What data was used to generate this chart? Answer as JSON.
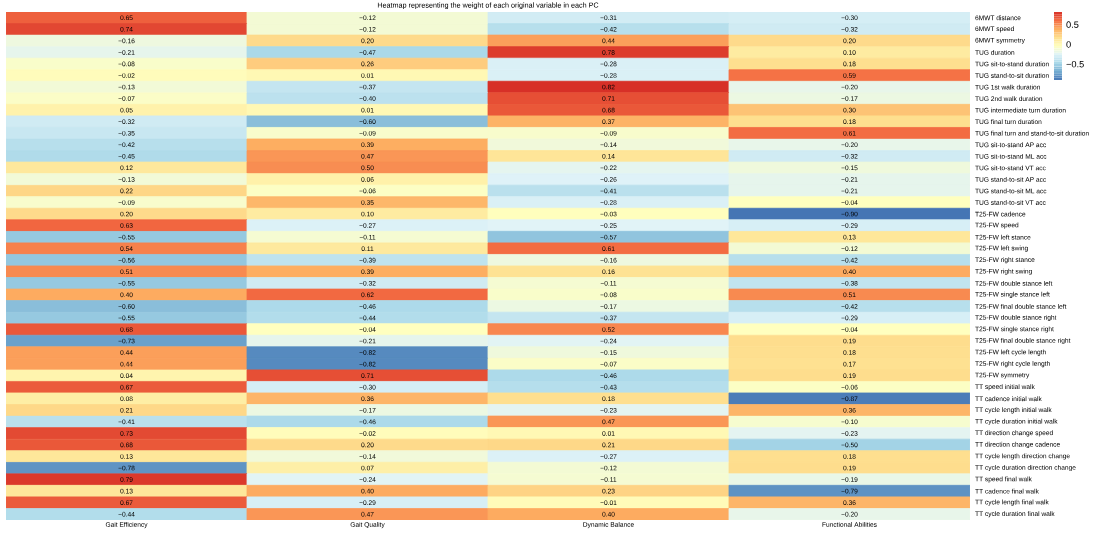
{
  "chart_data": {
    "type": "heatmap",
    "title": "Heatmap representing the weight of each original variable in each PC",
    "categories": [
      "Gait Efficiency",
      "Gait Quality",
      "Dynamic Balance",
      "Functional Abilities"
    ],
    "y_categories": [
      "6MWT distance",
      "6MWT speed",
      "6MWT symmetry",
      "TUG duration",
      "TUG sit-to-stand duration",
      "TUG stand-to-sit duration",
      "TUG 1st walk duration",
      "TUG 2nd walk duration",
      "TUG intermediate turn duration",
      "TUG final turn duration",
      "TUG final turn and stand-to-sit duration",
      "TUG sit-to-stand AP acc",
      "TUG sit-to-stand ML acc",
      "TUG sit-to-stand VT acc",
      "TUG stand-to-sit AP acc",
      "TUG stand-to-sit ML acc",
      "TUG stand-to-sit VT acc",
      "T25-FW cadence",
      "T25-FW speed",
      "T25-FW left stance",
      "T25-FW left swing",
      "T25-FW right stance",
      "T25-FW right swing",
      "T25-FW double stance left",
      "T25-FW single stance left",
      "T25-FW final double stance left",
      "T25-FW double stance right",
      "T25-FW single stance right",
      "T25-FW final double stance right",
      "T25-FW left cycle length",
      "T25-FW right cycle length",
      "T25-FW symmetry",
      "TT speed initial walk",
      "TT cadence initial walk",
      "TT cycle length initial walk",
      "TT cycle duration initial walk",
      "TT direction change speed",
      "TT direction change cadence",
      "TT cycle length direction change",
      "TT cycle duration direction change",
      "TT speed final walk",
      "TT cadence final walk",
      "TT cycle length final walk",
      "TT cycle duration final walk"
    ],
    "cells": [
      [
        0.65,
        -0.12,
        -0.31,
        -0.3
      ],
      [
        0.74,
        -0.12,
        -0.42,
        -0.32
      ],
      [
        -0.16,
        0.2,
        0.44,
        0.2
      ],
      [
        -0.21,
        -0.47,
        0.78,
        0.1
      ],
      [
        -0.08,
        0.26,
        -0.28,
        0.18
      ],
      [
        -0.02,
        0.01,
        -0.28,
        0.59
      ],
      [
        -0.13,
        -0.37,
        0.82,
        -0.2
      ],
      [
        -0.07,
        -0.4,
        0.71,
        -0.17
      ],
      [
        0.05,
        0.01,
        0.68,
        0.3
      ],
      [
        -0.32,
        -0.6,
        0.37,
        0.18
      ],
      [
        -0.35,
        -0.09,
        -0.09,
        0.61
      ],
      [
        -0.42,
        0.39,
        -0.14,
        -0.2
      ],
      [
        -0.45,
        0.47,
        0.14,
        -0.32
      ],
      [
        0.12,
        0.5,
        -0.22,
        -0.15
      ],
      [
        -0.13,
        0.06,
        -0.26,
        -0.21
      ],
      [
        0.22,
        -0.06,
        -0.41,
        -0.21
      ],
      [
        -0.09,
        0.35,
        -0.28,
        -0.04
      ],
      [
        0.2,
        0.1,
        -0.03,
        -0.9
      ],
      [
        0.63,
        -0.27,
        -0.25,
        -0.29
      ],
      [
        -0.55,
        -0.11,
        -0.57,
        0.13
      ],
      [
        0.54,
        0.11,
        0.61,
        -0.12
      ],
      [
        -0.56,
        -0.39,
        -0.16,
        -0.42
      ],
      [
        0.51,
        0.39,
        0.16,
        0.4
      ],
      [
        -0.55,
        -0.32,
        -0.11,
        -0.38
      ],
      [
        0.4,
        0.62,
        -0.08,
        0.51
      ],
      [
        -0.6,
        -0.46,
        -0.17,
        -0.42
      ],
      [
        -0.55,
        -0.44,
        -0.37,
        -0.29
      ],
      [
        0.68,
        -0.04,
        0.52,
        -0.04
      ],
      [
        -0.73,
        -0.21,
        -0.24,
        0.19
      ],
      [
        0.44,
        -0.82,
        -0.15,
        0.18
      ],
      [
        0.44,
        -0.82,
        -0.07,
        0.17
      ],
      [
        0.04,
        0.71,
        -0.46,
        0.19
      ],
      [
        0.67,
        -0.3,
        -0.43,
        -0.06
      ],
      [
        0.08,
        0.36,
        0.18,
        -0.87
      ],
      [
        0.21,
        -0.17,
        -0.23,
        0.36
      ],
      [
        -0.41,
        -0.46,
        0.47,
        -0.1
      ],
      [
        0.73,
        -0.02,
        0.01,
        -0.23
      ],
      [
        0.68,
        0.2,
        0.21,
        -0.5
      ],
      [
        0.13,
        -0.14,
        -0.27,
        0.18
      ],
      [
        -0.78,
        0.07,
        -0.12,
        0.19
      ],
      [
        0.79,
        -0.24,
        -0.11,
        -0.19
      ],
      [
        0.13,
        0.4,
        0.23,
        -0.79
      ],
      [
        0.67,
        -0.29,
        -0.01,
        0.36
      ],
      [
        -0.44,
        0.47,
        0.4,
        -0.2
      ]
    ],
    "cell_labels": [
      [
        "0.65",
        "−0.12",
        "−0.31",
        "−0.30"
      ],
      [
        "0.74",
        "−0.12",
        "−0.42",
        "−0.32"
      ],
      [
        "−0.16",
        "0.20",
        "0.44",
        "0.20"
      ],
      [
        "−0.21",
        "−0.47",
        "0.78",
        "0.10"
      ],
      [
        "−0.08",
        "0.26",
        "−0.28",
        "0.18"
      ],
      [
        "−0.02",
        "0.01",
        "−0.28",
        "0.59"
      ],
      [
        "−0.13",
        "−0.37",
        "0.82",
        "−0.20"
      ],
      [
        "−0.07",
        "−0.40",
        "0.71",
        "−0.17"
      ],
      [
        "0.05",
        "0.01",
        "0.68",
        "0.30"
      ],
      [
        "−0.32",
        "−0.60",
        "0.37",
        "0.18"
      ],
      [
        "−0.35",
        "−0.09",
        "−0.09",
        "0.61"
      ],
      [
        "−0.42",
        "0.39",
        "−0.14",
        "−0.20"
      ],
      [
        "−0.45",
        "0.47",
        "0.14",
        "−0.32"
      ],
      [
        "0.12",
        "0.50",
        "−0.22",
        "−0.15"
      ],
      [
        "−0.13",
        "0.06",
        "−0.26",
        "−0.21"
      ],
      [
        "0.22",
        "−0.06",
        "−0.41",
        "−0.21"
      ],
      [
        "−0.09",
        "0.35",
        "−0.28",
        "−0.04"
      ],
      [
        "0.20",
        "0.10",
        "−0.03",
        "−0.90"
      ],
      [
        "0.63",
        "−0.27",
        "−0.25",
        "−0.29"
      ],
      [
        "−0.55",
        "−0.11",
        "−0.57",
        "0.13"
      ],
      [
        "0.54",
        "0.11",
        "0.61",
        "−0.12"
      ],
      [
        "−0.56",
        "−0.39",
        "−0.16",
        "−0.42"
      ],
      [
        "0.51",
        "0.39",
        "0.16",
        "0.40"
      ],
      [
        "−0.55",
        "−0.32",
        "−0.11",
        "−0.38"
      ],
      [
        "0.40",
        "0.62",
        "−0.08",
        "0.51"
      ],
      [
        "−0.60",
        "−0.46",
        "−0.17",
        "−0.42"
      ],
      [
        "−0.55",
        "−0.44",
        "−0.37",
        "−0.29"
      ],
      [
        "0.68",
        "−0.04",
        "0.52",
        "−0.04"
      ],
      [
        "−0.73",
        "−0.21",
        "−0.24",
        "0.19"
      ],
      [
        "0.44",
        "−0.82",
        "−0.15",
        "0.18"
      ],
      [
        "0.44",
        "−0.82",
        "−0.07",
        "0.17"
      ],
      [
        "0.04",
        "0.71",
        "−0.46",
        "0.19"
      ],
      [
        "0.67",
        "−0.30",
        "−0.43",
        "−0.06"
      ],
      [
        "0.08",
        "0.36",
        "0.18",
        "−0.87"
      ],
      [
        "0.21",
        "−0.17",
        "−0.23",
        "0.36"
      ],
      [
        "−0.41",
        "−0.46",
        "0.47",
        "−0.10"
      ],
      [
        "0.73",
        "−0.02",
        "0.01",
        "−0.23"
      ],
      [
        "0.68",
        "0.20",
        "0.21",
        "−0.50"
      ],
      [
        "0.13",
        "−0.14",
        "−0.27",
        "0.18"
      ],
      [
        "−0.78",
        "0.07",
        "−0.12",
        "0.19"
      ],
      [
        "0.79",
        "−0.24",
        "−0.11",
        "−0.19"
      ],
      [
        "0.13",
        "0.40",
        "0.23",
        "−0.79"
      ],
      [
        "0.67",
        "−0.29",
        "−0.01",
        "0.36"
      ],
      [
        "−0.44",
        "0.47",
        "0.40",
        "−0.20"
      ]
    ],
    "clim": [
      -0.9,
      0.82
    ],
    "cticks": [
      0.5,
      0,
      {
        "value": -0.5,
        "label": "−0.5"
      }
    ]
  }
}
